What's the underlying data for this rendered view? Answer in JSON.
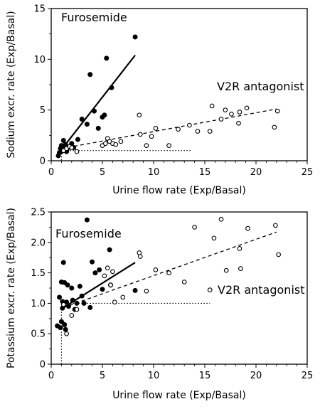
{
  "chart_data": [
    {
      "type": "scatter",
      "title": "",
      "xlabel": "Urine flow rate (Exp/Basal)",
      "ylabel": "Sodium excr. rate (Exp/Basal)",
      "xlim": [
        0,
        25
      ],
      "ylim": [
        0,
        15
      ],
      "xticks": [
        "0",
        "5",
        "10",
        "15",
        "20",
        "25"
      ],
      "yticks": [
        "0",
        "5",
        "10",
        "15"
      ],
      "annotations": [
        "Furosemide",
        "V2R antagonist"
      ],
      "reference_lines": {
        "x": 1,
        "y": 1,
        "x_extent": 13.6
      },
      "series": [
        {
          "name": "Furosemide",
          "marker": "filled",
          "fit": {
            "style": "solid",
            "x": [
              1.0,
              8.2
            ],
            "y": [
              1.1,
              10.4
            ]
          },
          "points": [
            [
              0.7,
              0.5
            ],
            [
              0.8,
              0.8
            ],
            [
              0.9,
              1.2
            ],
            [
              1.0,
              1.5
            ],
            [
              1.0,
              0.9
            ],
            [
              1.1,
              1.3
            ],
            [
              1.2,
              2.0
            ],
            [
              1.3,
              1.1
            ],
            [
              1.4,
              1.6
            ],
            [
              1.5,
              0.9
            ],
            [
              1.6,
              1.2
            ],
            [
              1.8,
              1.4
            ],
            [
              2.0,
              1.7
            ],
            [
              2.2,
              1.3
            ],
            [
              2.6,
              2.1
            ],
            [
              3.0,
              4.1
            ],
            [
              3.5,
              3.6
            ],
            [
              3.8,
              8.5
            ],
            [
              4.2,
              4.9
            ],
            [
              4.6,
              3.2
            ],
            [
              5.0,
              4.3
            ],
            [
              5.2,
              4.5
            ],
            [
              5.4,
              10.1
            ],
            [
              5.9,
              7.2
            ],
            [
              8.2,
              12.2
            ]
          ]
        },
        {
          "name": "V2R antagonist",
          "marker": "open",
          "fit": {
            "style": "dashed",
            "x": [
              1.0,
              22.0
            ],
            "y": [
              1.2,
              5.1
            ]
          },
          "points": [
            [
              1.2,
              1.0
            ],
            [
              1.5,
              1.2
            ],
            [
              1.8,
              1.4
            ],
            [
              2.0,
              1.3
            ],
            [
              2.5,
              0.9
            ],
            [
              5.0,
              1.5
            ],
            [
              5.3,
              1.7
            ],
            [
              5.5,
              2.2
            ],
            [
              5.7,
              1.9
            ],
            [
              6.0,
              1.7
            ],
            [
              6.3,
              1.6
            ],
            [
              6.8,
              1.9
            ],
            [
              8.6,
              4.5
            ],
            [
              8.7,
              2.6
            ],
            [
              9.3,
              1.5
            ],
            [
              9.8,
              2.4
            ],
            [
              10.2,
              3.2
            ],
            [
              11.5,
              1.5
            ],
            [
              12.4,
              3.1
            ],
            [
              13.5,
              3.5
            ],
            [
              14.3,
              2.9
            ],
            [
              15.5,
              2.9
            ],
            [
              15.7,
              5.4
            ],
            [
              16.6,
              4.1
            ],
            [
              17.0,
              5.0
            ],
            [
              17.6,
              4.6
            ],
            [
              18.3,
              3.7
            ],
            [
              18.4,
              4.8
            ],
            [
              19.1,
              5.2
            ],
            [
              21.8,
              3.3
            ],
            [
              22.1,
              4.9
            ]
          ]
        }
      ]
    },
    {
      "type": "scatter",
      "title": "",
      "xlabel": "Urine flow rate (Exp/Basal)",
      "ylabel": "Potassium excr. rate (Exp/Basal)",
      "xlim": [
        0,
        25
      ],
      "ylim": [
        0,
        2.5
      ],
      "xticks": [
        "0",
        "5",
        "10",
        "15",
        "20",
        "25"
      ],
      "yticks": [
        "0",
        "0.5",
        "1.0",
        "1.5",
        "2.0",
        "2.5"
      ],
      "annotations": [
        "Furosemide",
        "V2R antagonist"
      ],
      "reference_lines": {
        "x": 1,
        "y": 1,
        "x_extent": 15.5
      },
      "series": [
        {
          "name": "Furosemide",
          "marker": "filled",
          "fit": {
            "style": "solid",
            "x": [
              1.2,
              8.2
            ],
            "y": [
              0.93,
              1.67
            ]
          },
          "points": [
            [
              0.6,
              0.63
            ],
            [
              0.8,
              1.1
            ],
            [
              0.9,
              0.6
            ],
            [
              1.0,
              1.35
            ],
            [
              1.0,
              0.7
            ],
            [
              1.1,
              1.03
            ],
            [
              1.1,
              0.92
            ],
            [
              1.2,
              1.67
            ],
            [
              1.3,
              1.34
            ],
            [
              1.3,
              0.65
            ],
            [
              1.4,
              0.57
            ],
            [
              1.5,
              1.02
            ],
            [
              1.6,
              1.3
            ],
            [
              1.7,
              0.95
            ],
            [
              2.0,
              1.25
            ],
            [
              2.1,
              1.05
            ],
            [
              2.3,
              0.9
            ],
            [
              2.5,
              1.0
            ],
            [
              2.8,
              1.28
            ],
            [
              3.0,
              1.12
            ],
            [
              3.2,
              1.0
            ],
            [
              3.5,
              2.37
            ],
            [
              3.8,
              0.93
            ],
            [
              4.0,
              1.68
            ],
            [
              4.3,
              1.5
            ],
            [
              4.7,
              1.55
            ],
            [
              5.0,
              1.23
            ],
            [
              5.7,
              1.88
            ],
            [
              5.8,
              1.3
            ],
            [
              8.2,
              1.21
            ]
          ]
        },
        {
          "name": "V2R antagonist",
          "marker": "open",
          "fit": {
            "style": "dashed",
            "x": [
              1.2,
              22.0
            ],
            "y": [
              0.93,
              2.17
            ]
          },
          "points": [
            [
              1.2,
              0.98
            ],
            [
              1.5,
              0.5
            ],
            [
              2.0,
              0.8
            ],
            [
              2.5,
              0.9
            ],
            [
              5.2,
              1.45
            ],
            [
              5.5,
              1.58
            ],
            [
              5.8,
              1.3
            ],
            [
              6.0,
              1.52
            ],
            [
              6.2,
              1.02
            ],
            [
              7.0,
              1.1
            ],
            [
              8.6,
              1.83
            ],
            [
              8.7,
              1.77
            ],
            [
              9.3,
              1.2
            ],
            [
              10.2,
              1.55
            ],
            [
              11.5,
              1.5
            ],
            [
              13.0,
              1.35
            ],
            [
              14.0,
              2.25
            ],
            [
              15.5,
              1.22
            ],
            [
              15.9,
              2.07
            ],
            [
              16.6,
              2.38
            ],
            [
              17.1,
              1.54
            ],
            [
              18.4,
              1.9
            ],
            [
              18.5,
              1.57
            ],
            [
              19.2,
              2.23
            ],
            [
              21.9,
              2.28
            ],
            [
              22.2,
              1.8
            ]
          ]
        }
      ]
    }
  ]
}
